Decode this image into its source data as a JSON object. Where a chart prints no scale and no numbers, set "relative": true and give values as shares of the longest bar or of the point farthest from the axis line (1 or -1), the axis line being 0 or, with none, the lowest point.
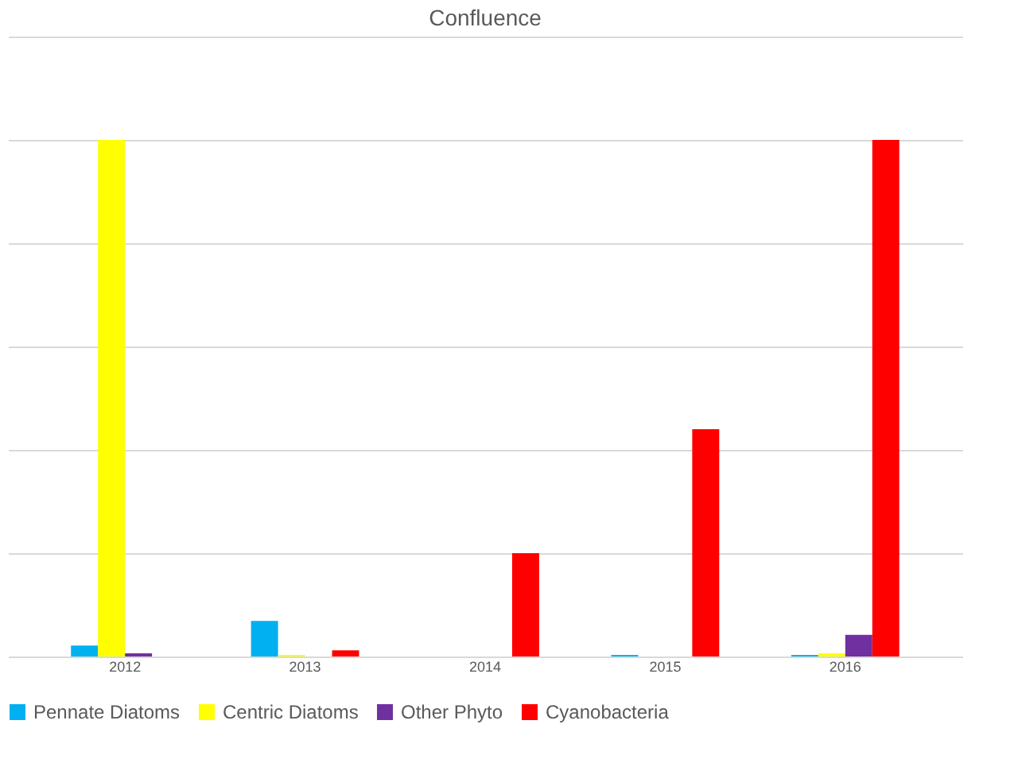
{
  "chart_data": {
    "type": "bar",
    "title": "Confluence",
    "relative": true,
    "grid": "y",
    "legend": "bottom",
    "categories": [
      "2012",
      "2013",
      "2014",
      "2015",
      "2016"
    ],
    "series": [
      {
        "name": "Pennate Diatoms",
        "color": "#00b0f0",
        "values": [
          0.021,
          0.069,
          0,
          0.003,
          0.003
        ]
      },
      {
        "name": "Centric Diatoms",
        "color": "#ffff00",
        "values": [
          1.0,
          0.003,
          0,
          0,
          0.006
        ]
      },
      {
        "name": "Other Phyto",
        "color": "#7030a0",
        "values": [
          0.006,
          0,
          0,
          0,
          0.042
        ]
      },
      {
        "name": "Cyanobacteria",
        "color": "#ff0000",
        "values": [
          0,
          0.012,
          0.2,
          0.44,
          1.0
        ]
      }
    ]
  }
}
